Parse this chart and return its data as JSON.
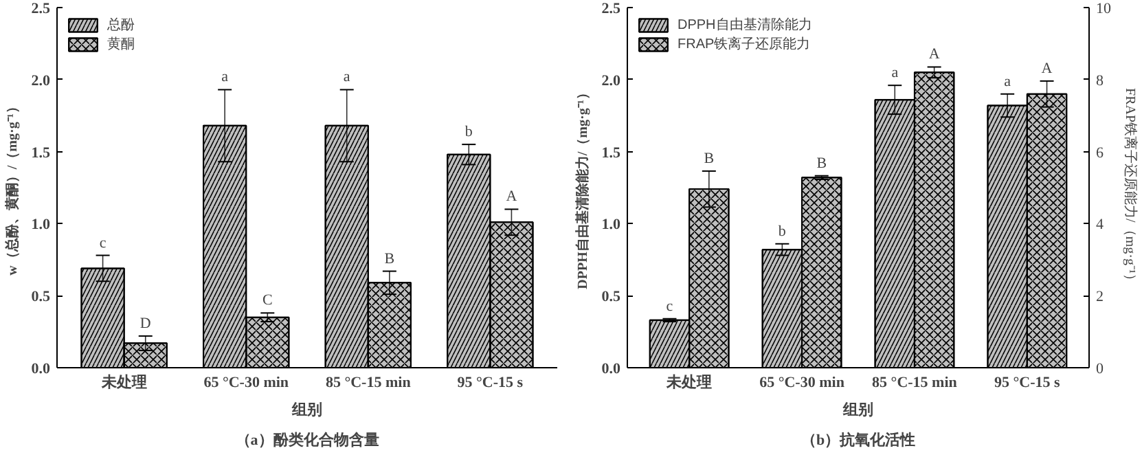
{
  "chart_data": [
    {
      "type": "bar",
      "title": "（a）酚类化合物含量",
      "xlabel": "组别",
      "ylabel": "w（总酚、黄酮）/（mg·g⁻¹）",
      "categories": [
        "未处理",
        "65 °C-30 min",
        "85 °C-15 min",
        "95 °C-15 s"
      ],
      "series": [
        {
          "name": "总酚",
          "color": "#000000",
          "values": [
            0.69,
            1.68,
            1.68,
            1.48
          ],
          "errors": [
            0.09,
            0.25,
            0.25,
            0.07
          ],
          "value_labels": [
            "c",
            "a",
            "a",
            "b"
          ]
        },
        {
          "name": "黄酮",
          "color": "#000000",
          "values": [
            0.17,
            0.35,
            0.59,
            1.01
          ],
          "errors": [
            0.05,
            0.03,
            0.08,
            0.09
          ],
          "value_labels": [
            "D",
            "C",
            "B",
            "A"
          ]
        }
      ],
      "ylim": [
        0,
        2.5
      ],
      "yticks": [
        {
          "value": 0,
          "label": "0.0"
        },
        0.5,
        {
          "value": 1,
          "label": "1.0"
        },
        1.5,
        {
          "value": 2,
          "label": "2.0"
        },
        2.5
      ],
      "legend": "top left",
      "grid": false
    },
    {
      "type": "bar",
      "title": "（b）抗氧化活性",
      "xlabel": "组别",
      "ylabel": "DPPH自由基清除能力/（mg·g⁻¹）",
      "y2label": "FRAP铁离子还原能力/（mg·g⁻¹）",
      "categories": [
        "未处理",
        "65 °C-30 min",
        "85 °C-15 min",
        "95 °C-15 s"
      ],
      "series": [
        {
          "name": "DPPH自由基清除能力",
          "color": "#000000",
          "values": [
            0.33,
            0.82,
            1.86,
            1.82
          ],
          "errors": [
            0.01,
            0.04,
            0.1,
            0.08
          ],
          "value_labels": [
            "c",
            "b",
            "a",
            "a"
          ]
        },
        {
          "name": "FRAP铁离子还原能力",
          "color": "#000000",
          "axis": "y2",
          "values": [
            4.96,
            5.28,
            8.2,
            7.6
          ],
          "errors": [
            0.5,
            0.05,
            0.15,
            0.36
          ],
          "value_labels": [
            "B",
            "B",
            "A",
            "A"
          ]
        }
      ],
      "ylim": [
        0,
        2.5
      ],
      "yticks": [
        {
          "value": 0,
          "label": "0.0"
        },
        0.5,
        {
          "value": 1,
          "label": "1.0"
        },
        1.5,
        {
          "value": 2,
          "label": "2.0"
        },
        2.5
      ],
      "y2lim": [
        0,
        10
      ],
      "y2ticks": [
        0,
        2,
        4,
        6,
        8,
        10
      ],
      "legend": "top left",
      "grid": false
    }
  ]
}
